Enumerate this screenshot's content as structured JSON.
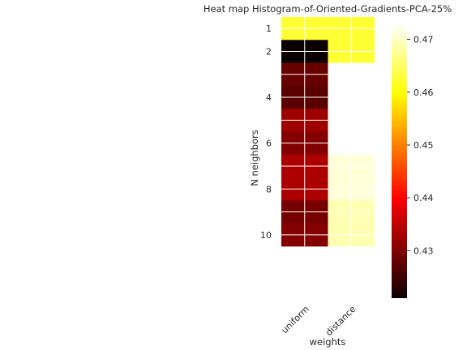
{
  "chart_data": {
    "type": "heatmap",
    "title": "Heat map Histogram-of-Oriented-Gradients-PCA-25%",
    "xlabel": "weights",
    "ylabel": "N neighbors",
    "x_categories": [
      "uniform",
      "distance"
    ],
    "y_categories": [
      1,
      2,
      3,
      4,
      5,
      6,
      7,
      8,
      9,
      10
    ],
    "y_tick_labels": [
      "1",
      "2",
      "4",
      "6",
      "8",
      "10"
    ],
    "y_tick_values": [
      1,
      2,
      4,
      6,
      8,
      10
    ],
    "values": [
      [
        0.4625,
        0.4625
      ],
      [
        0.421,
        0.4625
      ],
      [
        0.428,
        0.473
      ],
      [
        0.427,
        0.473
      ],
      [
        0.432,
        0.473
      ],
      [
        0.43,
        0.473
      ],
      [
        0.433,
        0.471
      ],
      [
        0.433,
        0.471
      ],
      [
        0.429,
        0.469
      ],
      [
        0.43,
        0.469
      ]
    ],
    "colormap": "hot",
    "colorbar": {
      "vmin": 0.421,
      "vmax": 0.473,
      "tick_values": [
        0.43,
        0.44,
        0.45,
        0.46,
        0.47
      ],
      "tick_labels": [
        "0.43",
        "0.44",
        "0.45",
        "0.46",
        "0.47"
      ]
    },
    "grid": true
  }
}
